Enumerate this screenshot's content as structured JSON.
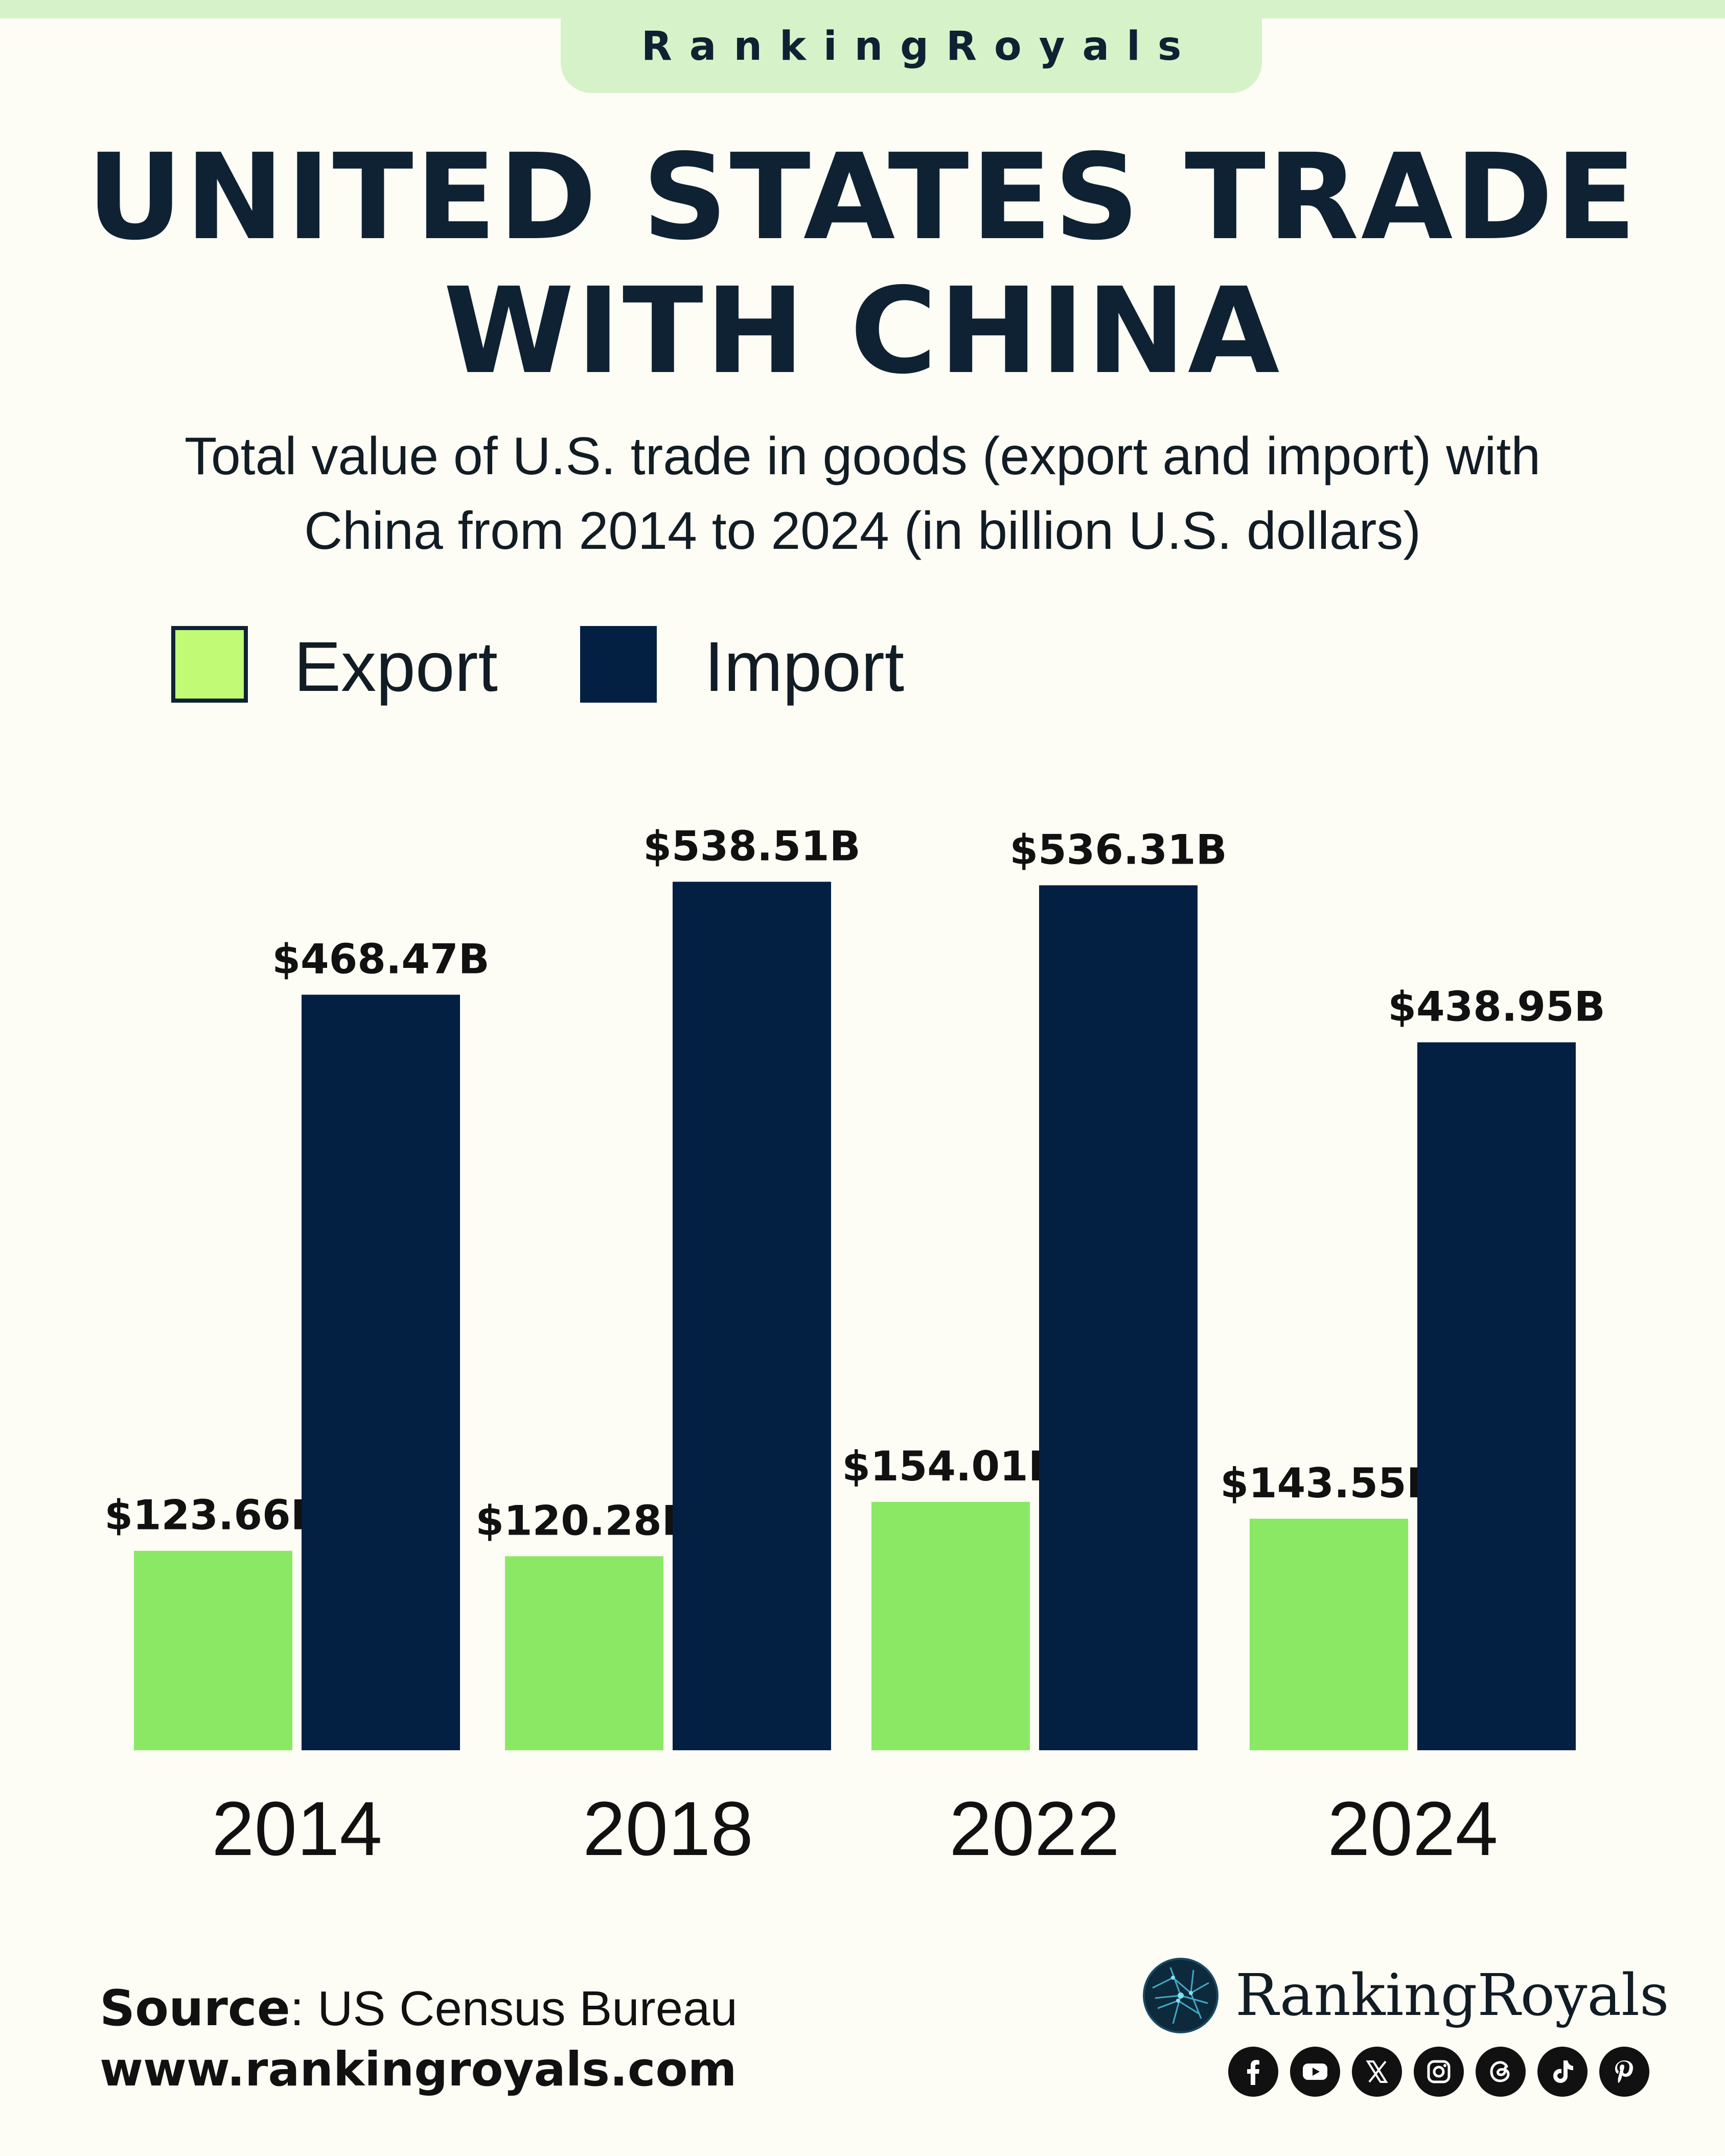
{
  "brand": {
    "tab_text": "RankingRoyals",
    "logo_text": "RankingRoyals"
  },
  "header": {
    "title_line1": "UNITED STATES TRADE",
    "title_line2": "WITH CHINA",
    "subtitle_line1": "Total value of U.S. trade in goods (export and import) with",
    "subtitle_line2": "China from 2014 to 2024 (in billion U.S. dollars)"
  },
  "footer": {
    "source_label": "Source",
    "source_value": ": US Census Bureau",
    "url": "www.rankingroyals.com"
  },
  "social_icons": [
    "facebook-icon",
    "youtube-icon",
    "x-icon",
    "instagram-icon",
    "threads-icon",
    "tiktok-icon",
    "pinterest-icon"
  ],
  "colors": {
    "background": "#fdfcf5",
    "export": "#8ae865",
    "import": "#031f42",
    "brand_green": "#d6f2c8",
    "text": "#0f2233"
  },
  "chart_data": {
    "type": "bar",
    "title": "UNITED STATES TRADE WITH CHINA",
    "subtitle": "Total value of U.S. trade in goods (export and import) with China from 2014 to 2024 (in billion U.S. dollars)",
    "categories": [
      "2014",
      "2018",
      "2022",
      "2024"
    ],
    "series": [
      {
        "name": "Export",
        "color": "#8ae865",
        "values": [
          123.66,
          120.28,
          154.01,
          143.55
        ],
        "labels": [
          "$123.66B",
          "$120.28B",
          "$154.01B",
          "$143.55B"
        ]
      },
      {
        "name": "Import",
        "color": "#031f42",
        "values": [
          468.47,
          538.51,
          536.31,
          438.95
        ],
        "labels": [
          "$468.47B",
          "$538.51B",
          "$536.31B",
          "$438.95B"
        ]
      }
    ],
    "legend": {
      "position": "top-left",
      "items": [
        "Export",
        "Import"
      ]
    },
    "grid": false,
    "ylim": [
      0,
      600
    ]
  }
}
